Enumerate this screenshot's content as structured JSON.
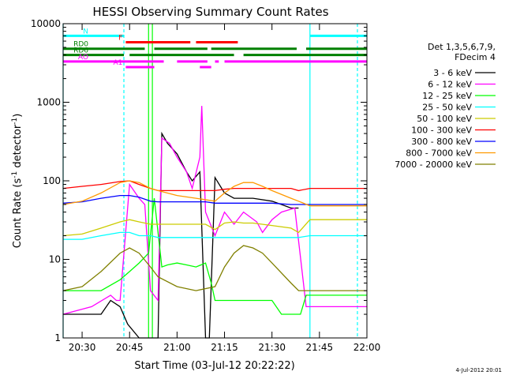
{
  "chart_data": {
    "type": "line",
    "title": "HESSI Observing Summary Count Rates",
    "xlabel": "Start Time (03-Jul-12 20:22:22)",
    "ylabel": "Count Rate (s⁻¹ detector⁻¹)",
    "ylabel_base": "Count Rate (s",
    "ylabel_mid": " detector",
    "ylabel_end": ")",
    "ylabel_sup": "-1",
    "y_scale": "log",
    "ylim": [
      1,
      10000
    ],
    "xlim_minutes": [
      20.4,
      22.0
    ],
    "x_ticks": [
      {
        "t": 20.5,
        "label": "20:30"
      },
      {
        "t": 20.75,
        "label": "20:45"
      },
      {
        "t": 21.0,
        "label": "21:00"
      },
      {
        "t": 21.25,
        "label": "21:15"
      },
      {
        "t": 21.5,
        "label": "21:30"
      },
      {
        "t": 21.75,
        "label": "21:45"
      },
      {
        "t": 22.0,
        "label": "22:00"
      }
    ],
    "y_ticks": [
      {
        "v": 1,
        "label": "1"
      },
      {
        "v": 10,
        "label": "10"
      },
      {
        "v": 100,
        "label": "100"
      },
      {
        "v": 1000,
        "label": "1000"
      },
      {
        "v": 10000,
        "label": "10000"
      }
    ],
    "legend_header": [
      "Det 1,3,5,6,7,9,",
      "FDecim 4"
    ],
    "legend_position": "right",
    "series": [
      {
        "name": "3 - 6 keV",
        "color": "#000000",
        "points": [
          [
            20.4,
            2.0
          ],
          [
            20.6,
            2.0
          ],
          [
            20.65,
            3.0
          ],
          [
            20.7,
            2.5
          ],
          [
            20.74,
            1.5
          ],
          [
            20.8,
            1.0
          ],
          [
            20.86,
            1.0
          ],
          [
            20.9,
            1.0
          ],
          [
            20.92,
            400
          ],
          [
            20.95,
            300
          ],
          [
            21.0,
            220
          ],
          [
            21.05,
            130
          ],
          [
            21.08,
            100
          ],
          [
            21.12,
            130
          ],
          [
            21.15,
            1.0
          ],
          [
            21.17,
            1.0
          ],
          [
            21.2,
            110
          ],
          [
            21.25,
            70
          ],
          [
            21.3,
            60
          ],
          [
            21.4,
            60
          ],
          [
            21.5,
            55
          ],
          [
            21.55,
            50
          ],
          [
            21.6,
            45
          ],
          [
            21.64,
            45
          ]
        ]
      },
      {
        "name": "6 - 12 keV",
        "color": "#ff00ff",
        "points": [
          [
            20.4,
            2.0
          ],
          [
            20.55,
            2.5
          ],
          [
            20.65,
            3.5
          ],
          [
            20.68,
            3.0
          ],
          [
            20.7,
            3.0
          ],
          [
            20.75,
            90
          ],
          [
            20.8,
            60
          ],
          [
            20.83,
            50
          ],
          [
            20.86,
            4.0
          ],
          [
            20.9,
            3.0
          ],
          [
            20.92,
            350
          ],
          [
            20.96,
            300
          ],
          [
            21.0,
            200
          ],
          [
            21.05,
            130
          ],
          [
            21.08,
            80
          ],
          [
            21.12,
            200
          ],
          [
            21.13,
            900
          ],
          [
            21.15,
            40
          ],
          [
            21.2,
            20
          ],
          [
            21.25,
            40
          ],
          [
            21.3,
            28
          ],
          [
            21.35,
            40
          ],
          [
            21.42,
            30
          ],
          [
            21.45,
            22
          ],
          [
            21.5,
            32
          ],
          [
            21.55,
            40
          ],
          [
            21.62,
            45
          ],
          [
            21.68,
            2.5
          ],
          [
            22.0,
            2.5
          ]
        ]
      },
      {
        "name": "12 - 25 keV",
        "color": "#00ff00",
        "points": [
          [
            20.4,
            4.0
          ],
          [
            20.6,
            4.0
          ],
          [
            20.7,
            5.5
          ],
          [
            20.75,
            7.0
          ],
          [
            20.8,
            9.0
          ],
          [
            20.85,
            12
          ],
          [
            20.88,
            60
          ],
          [
            20.92,
            8.0
          ],
          [
            20.95,
            8.5
          ],
          [
            21.0,
            9.0
          ],
          [
            21.05,
            8.5
          ],
          [
            21.1,
            8.0
          ],
          [
            21.15,
            9.0
          ],
          [
            21.18,
            5.0
          ],
          [
            21.2,
            3.0
          ],
          [
            21.3,
            3.0
          ],
          [
            21.4,
            3.0
          ],
          [
            21.5,
            3.0
          ],
          [
            21.55,
            2.0
          ],
          [
            21.6,
            2.0
          ],
          [
            21.65,
            2.0
          ],
          [
            21.68,
            3.5
          ],
          [
            22.0,
            3.5
          ]
        ]
      },
      {
        "name": "25 - 50 keV",
        "color": "#00ffff",
        "points": [
          [
            20.4,
            18
          ],
          [
            20.5,
            18
          ],
          [
            20.6,
            20
          ],
          [
            20.7,
            22
          ],
          [
            20.75,
            22
          ],
          [
            20.8,
            20
          ],
          [
            20.86,
            20
          ],
          [
            20.9,
            19
          ],
          [
            21.0,
            19
          ],
          [
            21.1,
            19
          ],
          [
            21.15,
            19
          ],
          [
            21.2,
            19
          ],
          [
            21.3,
            19
          ],
          [
            21.4,
            19
          ],
          [
            21.5,
            19
          ],
          [
            21.6,
            19
          ],
          [
            21.64,
            19
          ],
          [
            21.7,
            20
          ],
          [
            22.0,
            20
          ]
        ]
      },
      {
        "name": "50 - 100 keV",
        "color": "#cccc00",
        "points": [
          [
            20.4,
            20
          ],
          [
            20.5,
            21
          ],
          [
            20.6,
            25
          ],
          [
            20.7,
            30
          ],
          [
            20.75,
            32
          ],
          [
            20.8,
            30
          ],
          [
            20.86,
            28
          ],
          [
            20.9,
            28
          ],
          [
            21.0,
            28
          ],
          [
            21.1,
            28
          ],
          [
            21.15,
            28
          ],
          [
            21.2,
            24
          ],
          [
            21.25,
            29
          ],
          [
            21.3,
            30
          ],
          [
            21.35,
            29
          ],
          [
            21.4,
            29
          ],
          [
            21.5,
            27
          ],
          [
            21.6,
            25
          ],
          [
            21.64,
            22
          ],
          [
            21.7,
            32
          ],
          [
            22.0,
            32
          ]
        ]
      },
      {
        "name": "100 - 300 keV",
        "color": "#ff0000",
        "points": [
          [
            20.4,
            80
          ],
          [
            20.5,
            85
          ],
          [
            20.6,
            90
          ],
          [
            20.7,
            98
          ],
          [
            20.75,
            100
          ],
          [
            20.8,
            90
          ],
          [
            20.86,
            80
          ],
          [
            20.9,
            75
          ],
          [
            21.0,
            75
          ],
          [
            21.1,
            75
          ],
          [
            21.15,
            75
          ],
          [
            21.2,
            75
          ],
          [
            21.25,
            78
          ],
          [
            21.3,
            80
          ],
          [
            21.4,
            80
          ],
          [
            21.5,
            80
          ],
          [
            21.6,
            80
          ],
          [
            21.64,
            75
          ],
          [
            21.7,
            80
          ],
          [
            22.0,
            80
          ]
        ]
      },
      {
        "name": "300 - 800 keV",
        "color": "#0000ff",
        "points": [
          [
            20.4,
            52
          ],
          [
            20.5,
            54
          ],
          [
            20.6,
            60
          ],
          [
            20.7,
            65
          ],
          [
            20.75,
            65
          ],
          [
            20.8,
            62
          ],
          [
            20.86,
            55
          ],
          [
            20.9,
            54
          ],
          [
            21.0,
            54
          ],
          [
            21.1,
            54
          ],
          [
            21.15,
            54
          ],
          [
            21.2,
            52
          ],
          [
            21.3,
            52
          ],
          [
            21.4,
            52
          ],
          [
            21.5,
            52
          ],
          [
            21.6,
            50
          ],
          [
            21.64,
            50
          ],
          [
            21.7,
            50
          ],
          [
            22.0,
            50
          ]
        ]
      },
      {
        "name": "800 - 7000 keV",
        "color": "#ff9900",
        "points": [
          [
            20.4,
            50
          ],
          [
            20.5,
            55
          ],
          [
            20.6,
            70
          ],
          [
            20.7,
            95
          ],
          [
            20.75,
            100
          ],
          [
            20.8,
            95
          ],
          [
            20.86,
            80
          ],
          [
            20.9,
            75
          ],
          [
            21.0,
            65
          ],
          [
            21.1,
            60
          ],
          [
            21.2,
            55
          ],
          [
            21.25,
            70
          ],
          [
            21.3,
            85
          ],
          [
            21.35,
            95
          ],
          [
            21.4,
            95
          ],
          [
            21.45,
            85
          ],
          [
            21.5,
            75
          ],
          [
            21.6,
            60
          ],
          [
            21.64,
            55
          ],
          [
            21.7,
            48
          ],
          [
            22.0,
            48
          ]
        ]
      },
      {
        "name": "7000 - 20000 keV",
        "color": "#808000",
        "points": [
          [
            20.4,
            4.0
          ],
          [
            20.5,
            4.5
          ],
          [
            20.6,
            7.0
          ],
          [
            20.7,
            12
          ],
          [
            20.75,
            14
          ],
          [
            20.8,
            12
          ],
          [
            20.86,
            8.0
          ],
          [
            20.9,
            6.0
          ],
          [
            21.0,
            4.5
          ],
          [
            21.1,
            4.0
          ],
          [
            21.2,
            4.5
          ],
          [
            21.25,
            8.0
          ],
          [
            21.3,
            12
          ],
          [
            21.35,
            15
          ],
          [
            21.4,
            14
          ],
          [
            21.45,
            12
          ],
          [
            21.5,
            9.0
          ],
          [
            21.6,
            5.0
          ],
          [
            21.64,
            4.0
          ],
          [
            21.7,
            4.0
          ],
          [
            22.0,
            4.0
          ]
        ]
      }
    ],
    "vertical_lines": [
      {
        "t": 20.4,
        "color": "#00ffff",
        "style": "solid"
      },
      {
        "t": 20.72,
        "color": "#00ffff",
        "style": "dashed"
      },
      {
        "t": 21.7,
        "color": "#00ffff",
        "style": "solid"
      },
      {
        "t": 21.95,
        "color": "#00ffff",
        "style": "dashed"
      },
      {
        "t": 20.85,
        "color": "#00ff00",
        "style": "solid"
      },
      {
        "t": 20.87,
        "color": "#00ff00",
        "style": "solid"
      }
    ],
    "flag_bars": [
      {
        "label": "N",
        "color": "#00ffff",
        "v": 7000,
        "segments": [
          [
            20.4,
            20.72
          ],
          [
            21.7,
            22.0
          ]
        ]
      },
      {
        "label": "F",
        "color": "#ff0000",
        "v": 5800,
        "segments": [
          [
            20.73,
            21.07
          ],
          [
            21.1,
            21.32
          ]
        ]
      },
      {
        "label": "RD0",
        "color": "#008000",
        "v": 4800,
        "segments": [
          [
            20.4,
            20.83
          ],
          [
            20.88,
            21.16
          ],
          [
            21.18,
            21.63
          ],
          [
            21.68,
            22.0
          ]
        ]
      },
      {
        "label": "RD6",
        "color": "#008000",
        "v": 4000,
        "segments": [
          [
            20.4,
            20.72
          ],
          [
            20.75,
            21.3
          ],
          [
            21.35,
            22.0
          ]
        ]
      },
      {
        "label": "AO",
        "color": "#ff00ff",
        "v": 3300,
        "segments": [
          [
            20.4,
            20.93
          ],
          [
            21.0,
            21.16
          ],
          [
            21.2,
            21.22
          ],
          [
            21.25,
            22.0
          ]
        ]
      },
      {
        "label": "A1",
        "color": "#ff00ff",
        "v": 2800,
        "segments": [
          [
            20.73,
            20.88
          ],
          [
            21.12,
            21.18
          ]
        ]
      }
    ],
    "timestamp": "4-Jul-2012 20:01"
  }
}
